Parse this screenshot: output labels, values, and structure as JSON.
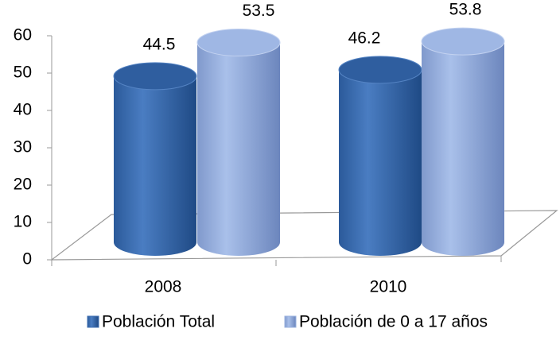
{
  "chart_data": {
    "type": "cylinder-bar",
    "categories": [
      "2008",
      "2010"
    ],
    "series": [
      {
        "name": "Población Total",
        "color": "#3d6db0",
        "values": [
          44.5,
          46.2
        ]
      },
      {
        "name": "Población de 0 a 17 años",
        "color": "#98b0de",
        "values": [
          53.5,
          53.8
        ]
      }
    ],
    "ylim": [
      0,
      60
    ],
    "yticks": [
      0,
      10,
      20,
      30,
      40,
      50,
      60
    ],
    "legend": "bottom"
  }
}
